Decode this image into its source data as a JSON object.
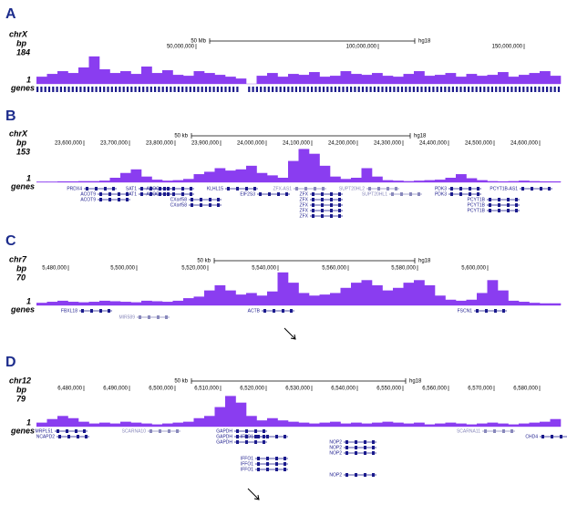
{
  "panels": [
    {
      "letter": "A",
      "chrom": "chrX",
      "bp_label": "bp",
      "max": 184,
      "min": 1,
      "genes_label": "genes",
      "scale": "50 Mb",
      "assembly": "hg18",
      "ticks": [
        "50,000,000",
        "100,000,000",
        "150,000,000"
      ],
      "signal": [
        40,
        55,
        70,
        60,
        90,
        150,
        80,
        60,
        70,
        55,
        95,
        60,
        75,
        50,
        45,
        70,
        60,
        50,
        40,
        30,
        null,
        45,
        60,
        40,
        55,
        50,
        65,
        40,
        45,
        70,
        55,
        50,
        60,
        45,
        40,
        55,
        70,
        45,
        50,
        60,
        40,
        55,
        45,
        50,
        65,
        40,
        50,
        60,
        70,
        45
      ],
      "genes": []
    },
    {
      "letter": "B",
      "chrom": "chrX",
      "bp_label": "bp",
      "max": 153,
      "min": 1,
      "genes_label": "genes",
      "scale": "50 kb",
      "assembly": "hg18",
      "ticks": [
        "23,600,000",
        "23,700,000",
        "23,800,000",
        "23,900,000",
        "24,000,000",
        "24,100,000",
        "24,200,000",
        "24,300,000",
        "24,400,000",
        "24,500,000",
        "24,600,000"
      ],
      "signal": [
        4,
        4,
        5,
        5,
        6,
        6,
        8,
        20,
        40,
        55,
        25,
        12,
        8,
        10,
        15,
        35,
        45,
        60,
        50,
        55,
        70,
        40,
        30,
        20,
        90,
        140,
        120,
        70,
        25,
        15,
        20,
        60,
        25,
        10,
        8,
        6,
        8,
        10,
        12,
        20,
        35,
        18,
        10,
        6,
        5,
        6,
        8,
        6,
        5,
        5
      ],
      "genes": [
        "PRDX4",
        "ACOT9",
        "ACOT9",
        "SAT1",
        "SAT1",
        "APOO",
        "APOO",
        "KLHL15",
        "CXorf58",
        "CXorf58",
        "EIF2S3",
        "ZFX-AS1",
        "ZFX",
        "ZFX",
        "ZFX",
        "ZFX",
        "ZFX",
        "SUPT20HL2",
        "SUPT20HL1",
        "PDK3",
        "PDK3",
        "PCYT1B-AS1",
        "PCYT1B",
        "PCYT1B",
        "PCYT1B"
      ]
    },
    {
      "letter": "C",
      "chrom": "chr7",
      "bp_label": "bp",
      "max": 70,
      "min": 1,
      "genes_label": "genes",
      "scale": "50 kb",
      "assembly": "hg18",
      "ticks": [
        "5,480,000",
        "5,500,000",
        "5,520,000",
        "5,540,000",
        "5,560,000",
        "5,580,000",
        "5,600,000"
      ],
      "signal": [
        6,
        8,
        10,
        8,
        7,
        8,
        10,
        9,
        8,
        7,
        10,
        9,
        8,
        10,
        15,
        18,
        30,
        40,
        30,
        22,
        25,
        20,
        28,
        65,
        45,
        25,
        20,
        22,
        25,
        35,
        45,
        50,
        40,
        30,
        35,
        45,
        50,
        40,
        20,
        12,
        10,
        12,
        25,
        50,
        30,
        10,
        8,
        6,
        5,
        5
      ],
      "genes": [
        "FBXL18",
        "MIR589",
        "ACTB",
        "FSCN1"
      ]
    },
    {
      "letter": "D",
      "chrom": "chr12",
      "bp_label": "bp",
      "max": 79,
      "min": 1,
      "genes_label": "genes",
      "scale": "50 kb",
      "assembly": "hg18",
      "ticks": [
        "6,480,000",
        "6,490,000",
        "6,500,000",
        "6,510,000",
        "6,520,000",
        "6,530,000",
        "6,540,000",
        "6,550,000",
        "6,560,000",
        "6,570,000",
        "6,580,000"
      ],
      "signal": [
        10,
        18,
        25,
        20,
        12,
        8,
        10,
        8,
        12,
        10,
        8,
        6,
        8,
        10,
        12,
        20,
        25,
        45,
        70,
        55,
        25,
        15,
        20,
        15,
        12,
        10,
        8,
        10,
        12,
        8,
        10,
        8,
        10,
        12,
        10,
        8,
        10,
        6,
        8,
        10,
        8,
        6,
        8,
        10,
        8,
        6,
        8,
        10,
        12,
        18
      ],
      "genes": [
        "MRPL51",
        "NCAPD2",
        "SCARNA10",
        "SCARNA11",
        "CHD4",
        "GAPDH",
        "GAPDH",
        "GAPDH",
        "IFFO1",
        "IFFO1",
        "IFFO1",
        "IFFO1",
        "NOP2",
        "NOP2",
        "NOP2",
        "NOP2"
      ]
    }
  ]
}
